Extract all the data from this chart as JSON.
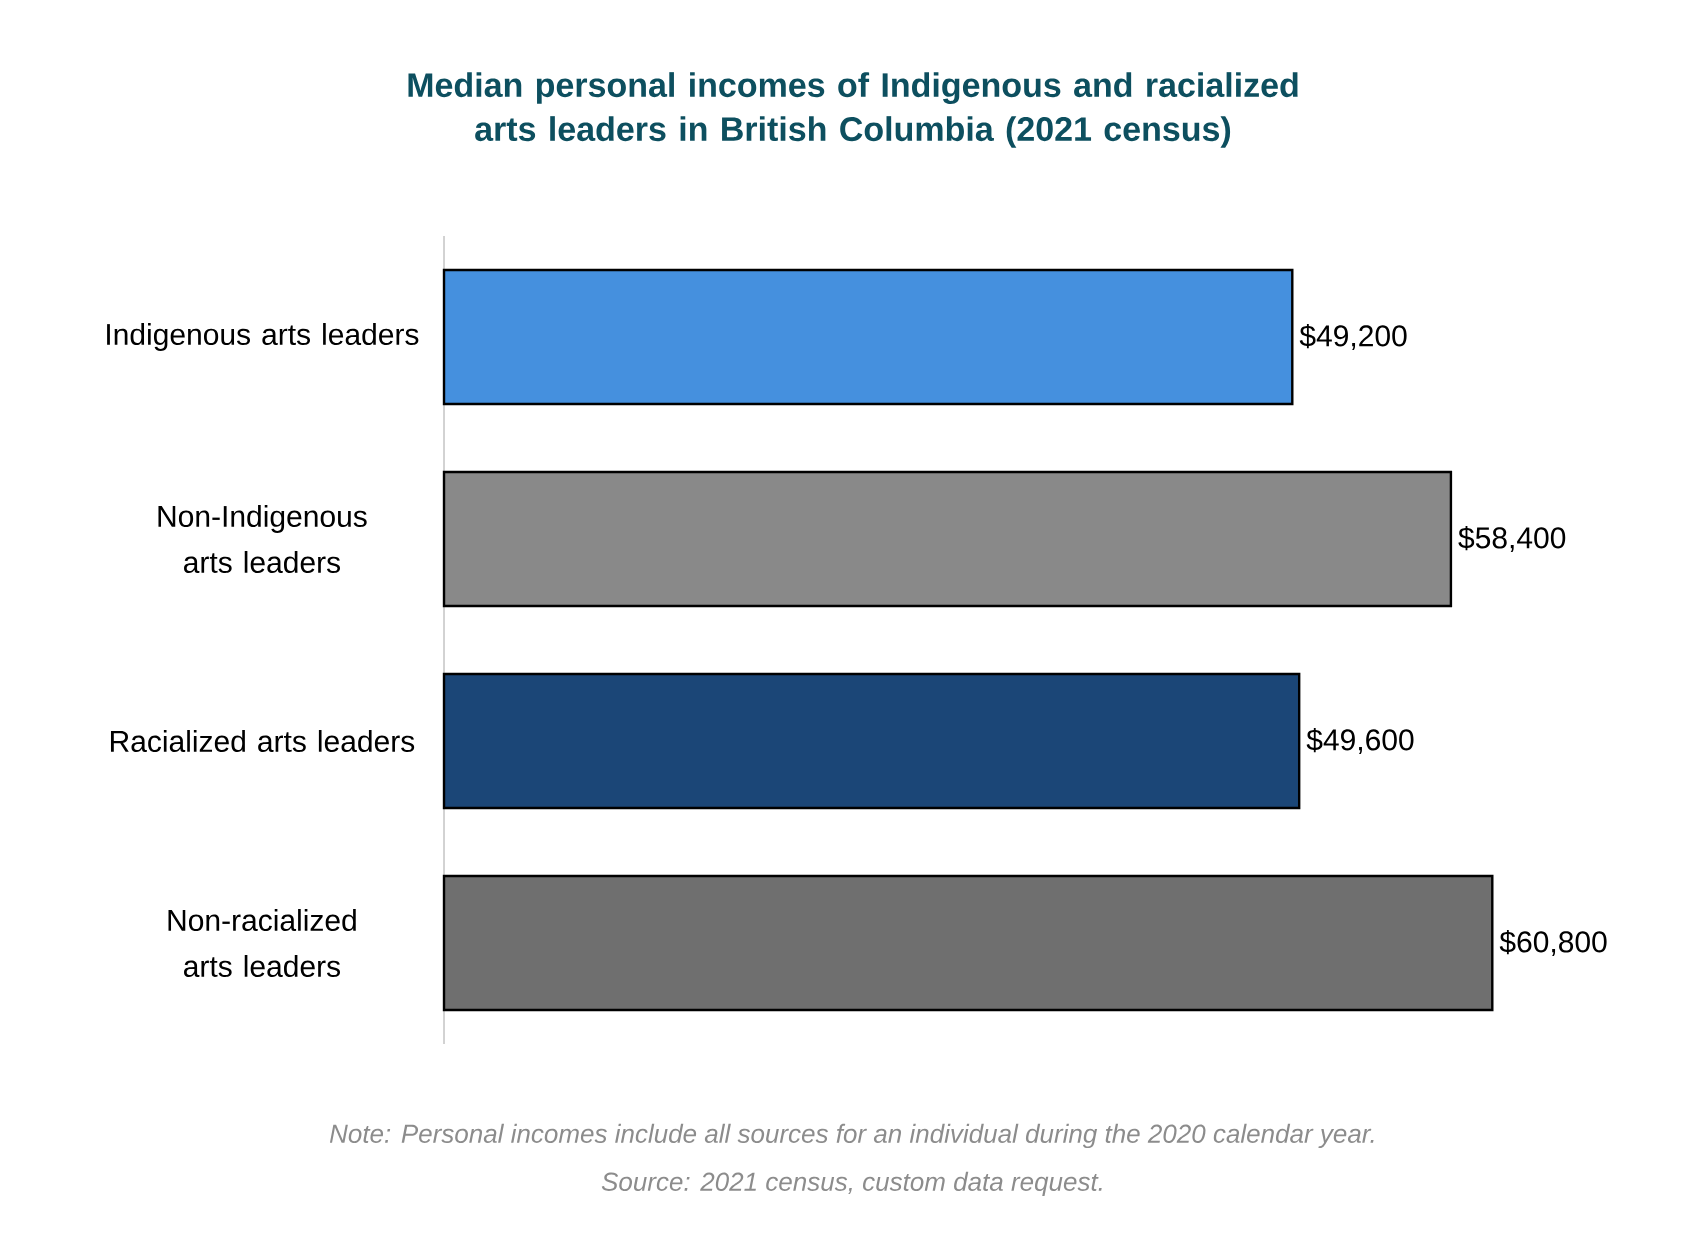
{
  "chart_data": {
    "type": "bar",
    "orientation": "horizontal",
    "title": "Median personal incomes of Indigenous and racialized arts leaders in British Columbia (2021 census)",
    "categories": [
      "Indigenous arts leaders",
      "Non-Indigenous arts leaders",
      "Racialized arts leaders",
      "Non-racialized arts leaders"
    ],
    "values": [
      49200,
      58400,
      49600,
      60800
    ],
    "colors": [
      "#4590de",
      "#898989",
      "#1b4677",
      "#6f6f6f"
    ],
    "value_labels": [
      "$49,200",
      "$58,400",
      "$49,600",
      "$60,800"
    ],
    "annotations": [
      "Note: Personal incomes include all sources for an individual during the 2020 calendar year.",
      "Source: 2021 census, custom data request."
    ]
  }
}
